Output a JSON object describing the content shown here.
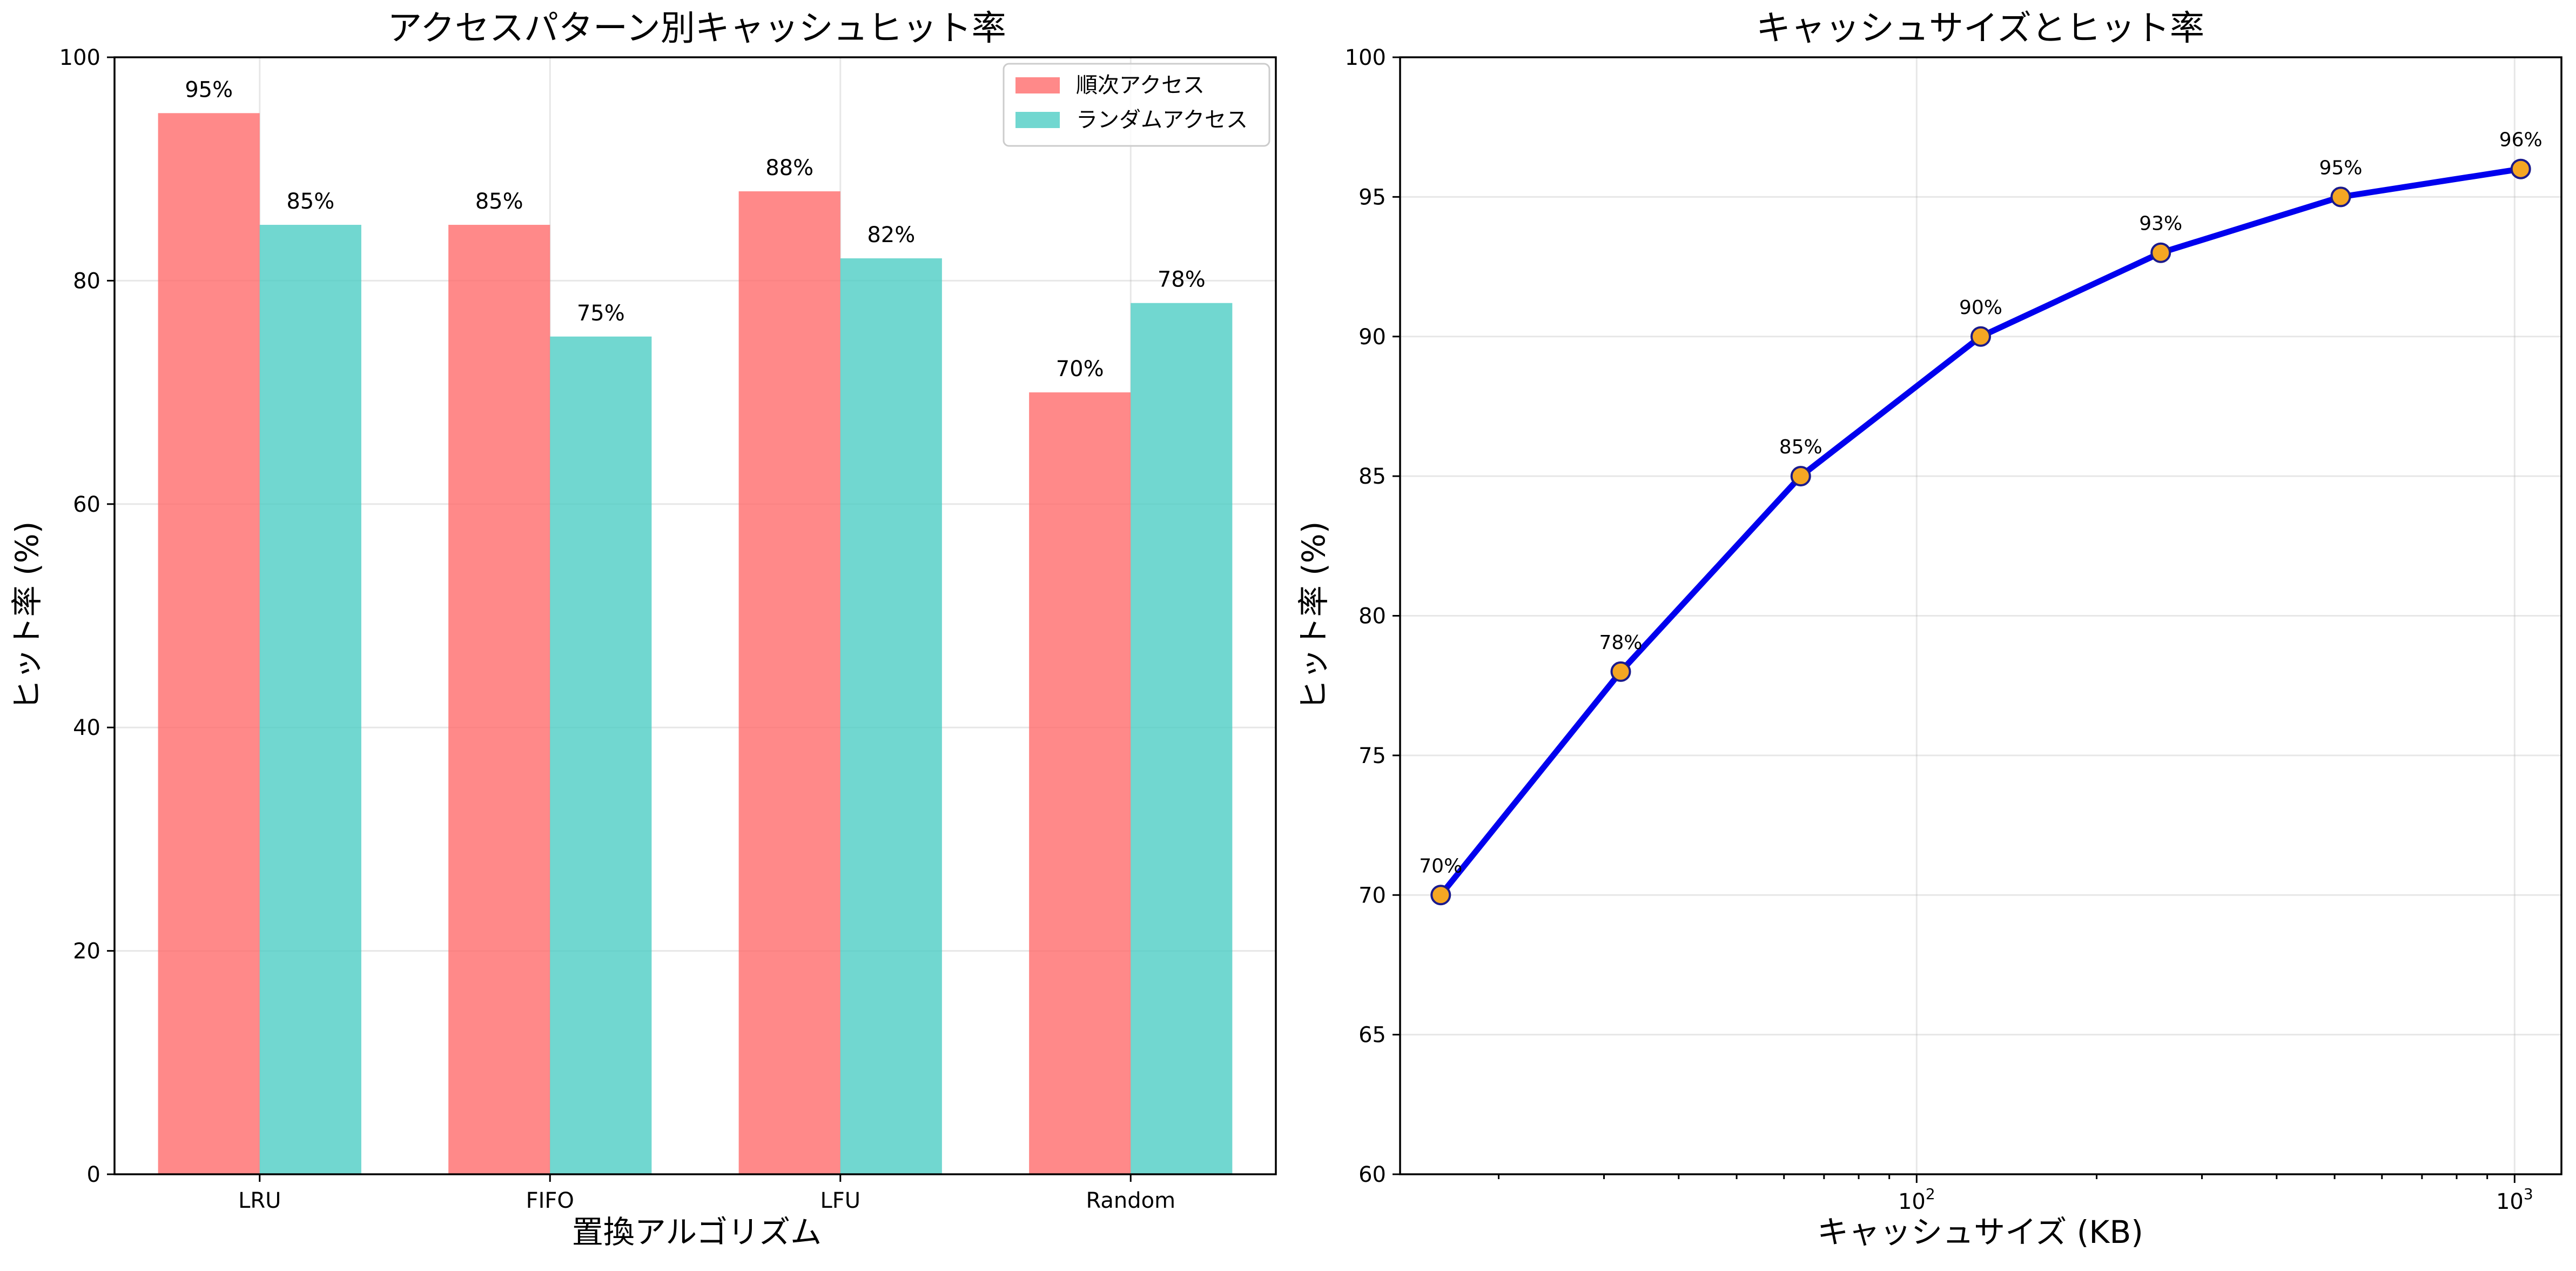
{
  "chart_data": [
    {
      "type": "bar",
      "title": "アクセスパターン別キャッシュヒット率",
      "xlabel": "置換アルゴリズム",
      "ylabel": "ヒット率 (%)",
      "categories": [
        "LRU",
        "FIFO",
        "LFU",
        "Random"
      ],
      "ylim": [
        0,
        100
      ],
      "yticks": [
        0,
        20,
        40,
        60,
        80,
        100
      ],
      "grid": true,
      "legend_position": "top-right",
      "series": [
        {
          "name": "順次アクセス",
          "values": [
            95,
            85,
            88,
            70
          ],
          "color": "#ff6b6b",
          "labels": [
            "95%",
            "85%",
            "88%",
            "70%"
          ]
        },
        {
          "name": "ランダムアクセス",
          "values": [
            85,
            75,
            82,
            78
          ],
          "color": "#4ecdc4",
          "labels": [
            "85%",
            "75%",
            "82%",
            "78%"
          ]
        }
      ]
    },
    {
      "type": "line",
      "title": "キャッシュサイズとヒット率",
      "xlabel": "キャッシュサイズ (KB)",
      "ylabel": "ヒット率 (%)",
      "x_scale": "log",
      "x": [
        16,
        32,
        64,
        128,
        256,
        512,
        1024
      ],
      "y": [
        70,
        78,
        85,
        90,
        93,
        95,
        96
      ],
      "labels": [
        "70%",
        "78%",
        "85%",
        "90%",
        "93%",
        "95%",
        "96%"
      ],
      "ylim": [
        60,
        100
      ],
      "yticks": [
        60,
        65,
        70,
        75,
        80,
        85,
        90,
        95,
        100
      ],
      "xticks": [
        {
          "base": "10",
          "exp": "2"
        },
        {
          "base": "10",
          "exp": "3"
        }
      ],
      "grid": true,
      "line_color": "#0000ee",
      "marker_color": "#f5a623",
      "marker_edge": "#1a1a8c"
    }
  ]
}
